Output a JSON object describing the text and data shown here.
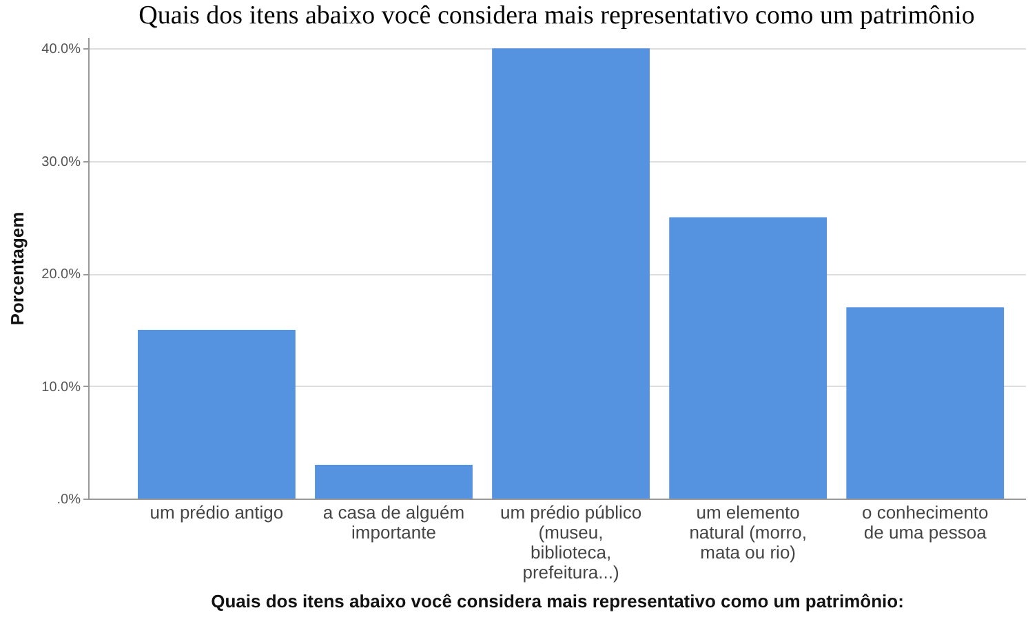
{
  "chart_data": {
    "type": "bar",
    "title": "Quais dos itens abaixo você considera mais representativo como um patrimônio",
    "xlabel": "Quais dos itens abaixo você considera mais representativo como um patrimônio:",
    "ylabel": "Porcentagem",
    "categories": [
      "um prédio antigo",
      "a casa de alguém importante",
      "um prédio público (museu, biblioteca, prefeitura...)",
      "um elemento natural (morro, mata ou rio)",
      "o conhecimento de uma pessoa"
    ],
    "values": [
      15,
      3,
      40,
      25,
      17
    ],
    "color": "#5592e0",
    "ylim": [
      0,
      41
    ],
    "yticks": [
      {
        "value": 0,
        "label": ".0%"
      },
      {
        "value": 10,
        "label": "10.0%"
      },
      {
        "value": 20,
        "label": "20.0%"
      },
      {
        "value": 30,
        "label": "30.0%"
      },
      {
        "value": 40,
        "label": "40.0%"
      }
    ],
    "grid": "y"
  }
}
